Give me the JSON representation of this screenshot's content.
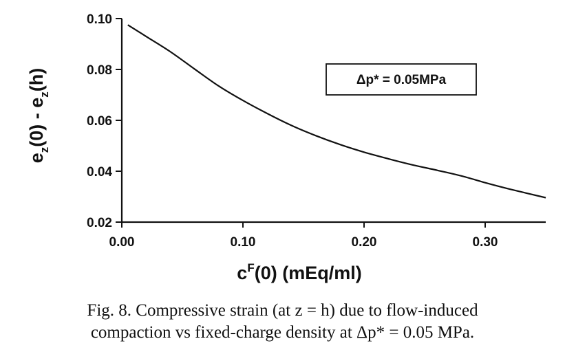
{
  "chart_data": {
    "type": "line",
    "title": "",
    "xlabel": {
      "main": "c",
      "sup": "F",
      "rest": "(0) (mEq/ml)"
    },
    "ylabel": {
      "p1": "e",
      "sub1": "z",
      "p2": "(0) - e",
      "sub2": "z",
      "p3": "(h)"
    },
    "xlim": [
      0.0,
      0.35
    ],
    "ylim": [
      0.02,
      0.1
    ],
    "x_ticks": [
      0.0,
      0.1,
      0.2,
      0.3
    ],
    "x_tick_labels": [
      "0.00",
      "0.10",
      "0.20",
      "0.30"
    ],
    "y_ticks": [
      0.02,
      0.04,
      0.06,
      0.08,
      0.1
    ],
    "y_tick_labels": [
      "0.02",
      "0.04",
      "0.06",
      "0.08",
      "0.10"
    ],
    "grid": false,
    "legend": "none",
    "annotation": "Δp* = 0.05MPa",
    "series": [
      {
        "color": "#111111",
        "x": [
          0.005,
          0.02,
          0.04,
          0.06,
          0.08,
          0.1,
          0.12,
          0.14,
          0.16,
          0.18,
          0.2,
          0.22,
          0.24,
          0.26,
          0.28,
          0.3,
          0.32,
          0.35
        ],
        "y": [
          0.0975,
          0.093,
          0.087,
          0.0802,
          0.0735,
          0.0678,
          0.0627,
          0.058,
          0.054,
          0.0505,
          0.0475,
          0.0449,
          0.0425,
          0.0404,
          0.0382,
          0.0355,
          0.033,
          0.0296
        ]
      }
    ]
  },
  "caption": {
    "line1": "Fig. 8. Compressive strain (at z = h) due to flow-induced",
    "line2": "compaction vs fixed-charge density at Δp* = 0.05 MPa."
  }
}
